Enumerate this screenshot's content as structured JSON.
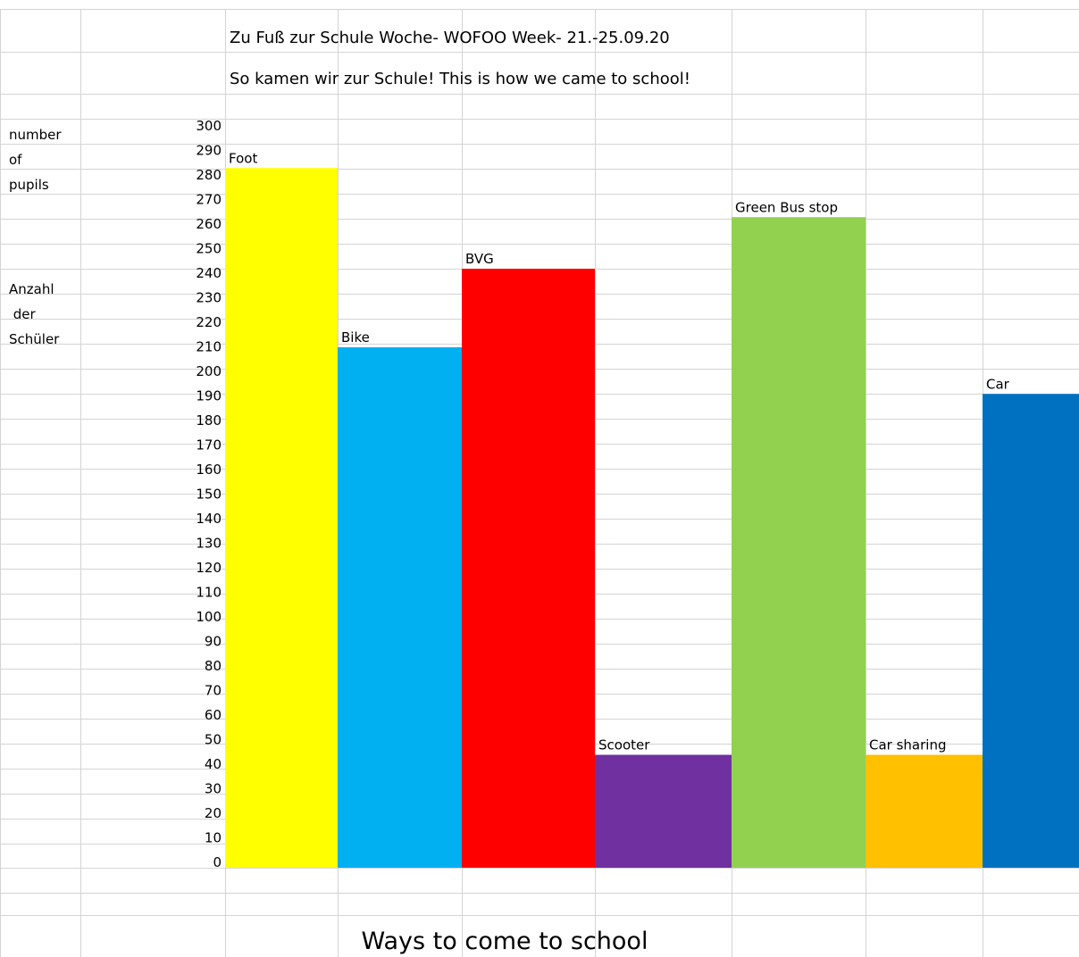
{
  "sheet": {
    "title_line1": "Zu Fuß zur Schule Woche- WOFOO Week- 21.-25.09.20",
    "title_line2": "So kamen wir zur Schule! This is how we came to school!",
    "ylabel_en": [
      "number",
      "of",
      "pupils"
    ],
    "ylabel_de": [
      "Anzahl",
      " der",
      "Schüler"
    ],
    "xlabel": "Ways to come to school"
  },
  "chart_data": {
    "type": "bar",
    "title": "Zu Fuß zur Schule Woche- WOFOO Week- 21.-25.09.20",
    "subtitle": "So kamen wir zur Schule! This is how we came to school!",
    "xlabel": "Ways to come to school",
    "ylabel": "number of pupils / Anzahl der Schüler",
    "ylim": [
      0,
      300
    ],
    "yticks": [
      0,
      10,
      20,
      30,
      40,
      50,
      60,
      70,
      80,
      90,
      100,
      110,
      120,
      130,
      140,
      150,
      160,
      170,
      180,
      190,
      200,
      210,
      220,
      230,
      240,
      250,
      260,
      270,
      280,
      290,
      300
    ],
    "grid": true,
    "categories": [
      "Foot",
      "Bike",
      "BVG",
      "Scooter",
      "Green Bus stop",
      "Car sharing",
      "Car"
    ],
    "values": [
      285,
      212,
      244,
      46,
      265,
      46,
      193
    ],
    "colors": [
      "#ffff00",
      "#00b0f0",
      "#ff0000",
      "#7030a0",
      "#92d050",
      "#ffc000",
      "#0070c0"
    ]
  }
}
